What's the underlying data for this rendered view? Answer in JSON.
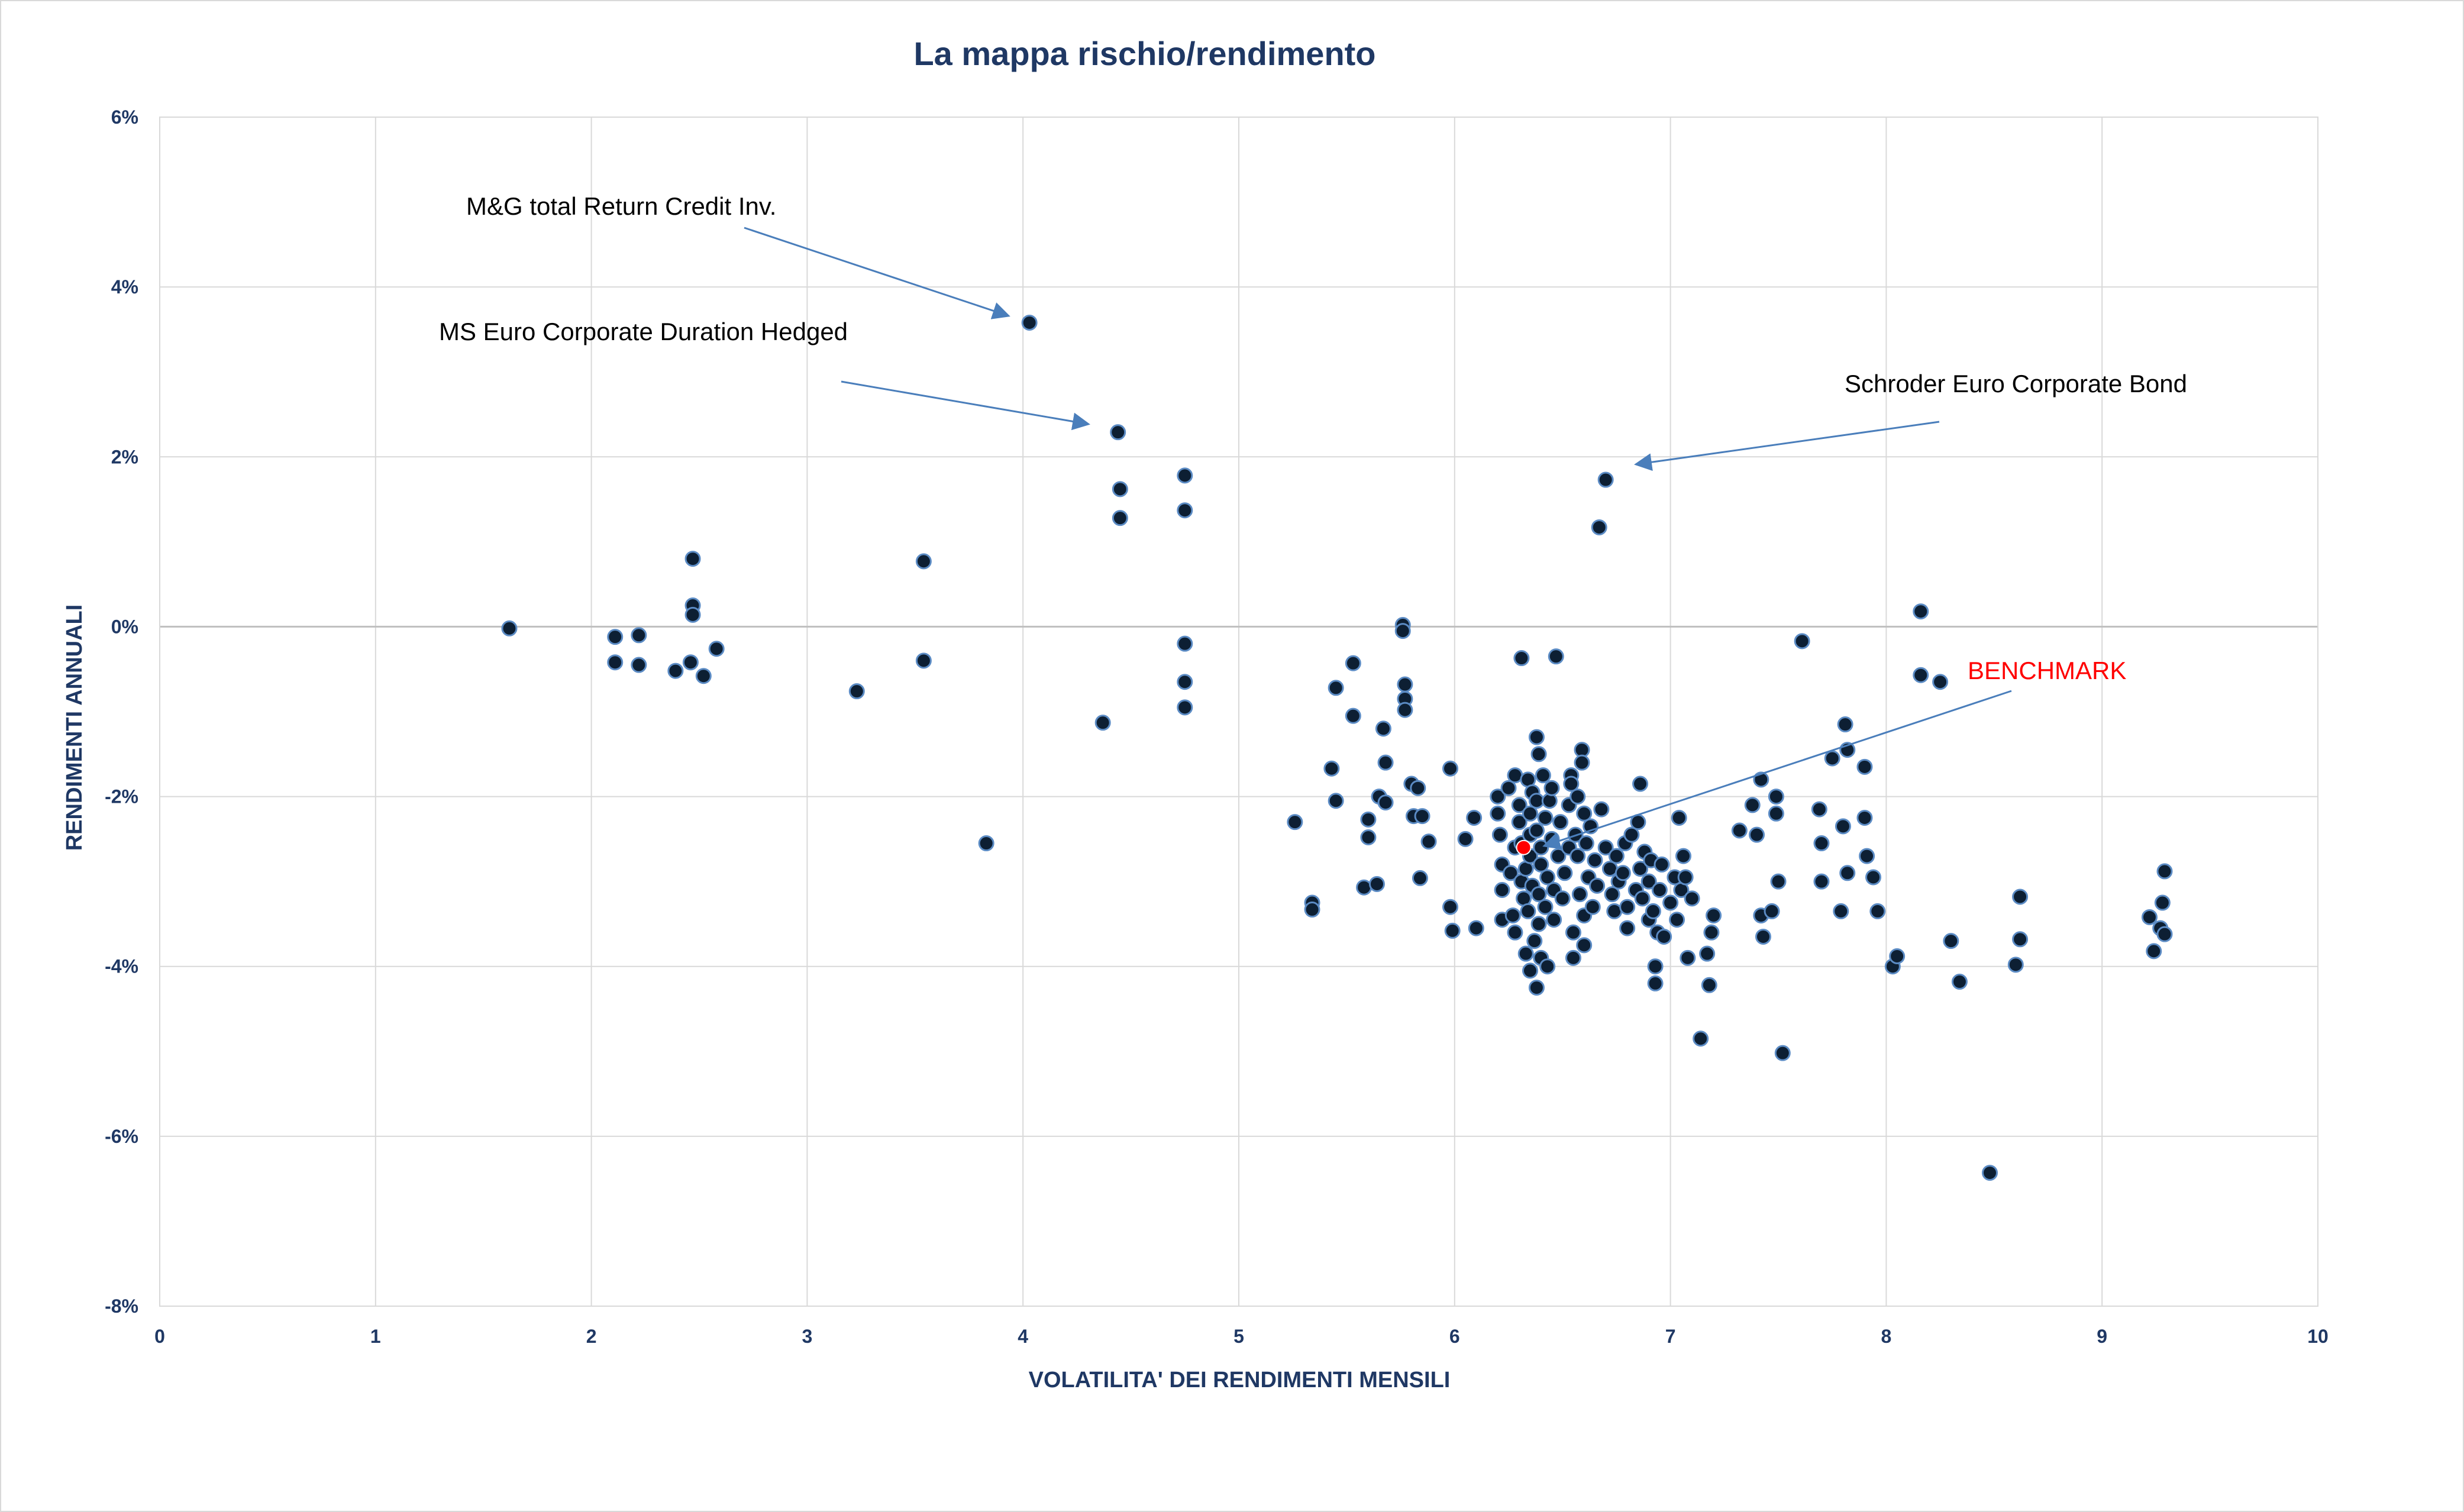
{
  "chart_data": {
    "type": "scatter",
    "title": "La mappa rischio/rendimento",
    "xlabel": "VOLATILITA' DEI RENDIMENTI MENSILI",
    "ylabel": "RENDIMENTI ANNUALI",
    "xlim": [
      0,
      10
    ],
    "ylim": [
      -8,
      6
    ],
    "x_ticks": [
      "0",
      "1",
      "2",
      "3",
      "4",
      "5",
      "6",
      "7",
      "8",
      "9",
      "10"
    ],
    "y_ticks": [
      "-8%",
      "-6%",
      "-4%",
      "-2%",
      "0%",
      "2%",
      "4%",
      "6%"
    ],
    "grid": true,
    "legend": "none",
    "colors": {
      "point": "#0d1f33",
      "point_edge": "#5b8bc4",
      "benchmark": "#ff0000",
      "grid": "#d9d9d9",
      "zero_line": "#bfbfbf",
      "axis_text": "#1f3864",
      "arrow": "#4a7ebb"
    },
    "annotations": [
      {
        "text": "M&G total Return Credit Inv.",
        "color": "#000000",
        "target": [
          4.0,
          3.6
        ]
      },
      {
        "text": "MS Euro Corporate Duration Hedged",
        "color": "#000000",
        "target": [
          4.4,
          2.3
        ]
      },
      {
        "text": "Schroder Euro Corporate Bond",
        "color": "#000000",
        "target": [
          6.8,
          1.9
        ]
      },
      {
        "text": "BENCHMARK",
        "color": "#ff0000",
        "target": [
          6.4,
          -2.6
        ]
      }
    ],
    "benchmark": {
      "x": 6.32,
      "y": -2.6
    },
    "series": [
      {
        "points": [
          [
            1.62,
            -0.02
          ],
          [
            2.11,
            -0.12
          ],
          [
            2.11,
            -0.42
          ],
          [
            2.22,
            -0.1
          ],
          [
            2.22,
            -0.45
          ],
          [
            2.39,
            -0.52
          ],
          [
            2.47,
            0.8
          ],
          [
            2.47,
            0.25
          ],
          [
            2.47,
            0.14
          ],
          [
            2.46,
            -0.42
          ],
          [
            2.52,
            -0.58
          ],
          [
            2.58,
            -0.26
          ],
          [
            3.23,
            -0.76
          ],
          [
            3.54,
            0.77
          ],
          [
            3.54,
            -0.4
          ],
          [
            3.83,
            -2.55
          ],
          [
            4.03,
            3.58
          ],
          [
            4.37,
            -1.13
          ],
          [
            4.44,
            2.29
          ],
          [
            4.45,
            1.62
          ],
          [
            4.45,
            1.28
          ],
          [
            4.75,
            1.78
          ],
          [
            4.75,
            1.37
          ],
          [
            4.75,
            -0.2
          ],
          [
            4.75,
            -0.65
          ],
          [
            4.75,
            -0.95
          ],
          [
            5.26,
            -2.3
          ],
          [
            5.34,
            -3.25
          ],
          [
            5.34,
            -3.33
          ],
          [
            5.43,
            -1.67
          ],
          [
            5.45,
            -0.72
          ],
          [
            5.45,
            -2.05
          ],
          [
            5.53,
            -0.43
          ],
          [
            5.53,
            -1.05
          ],
          [
            5.58,
            -3.07
          ],
          [
            5.6,
            -2.27
          ],
          [
            5.6,
            -2.48
          ],
          [
            5.64,
            -3.03
          ],
          [
            5.65,
            -2.0
          ],
          [
            5.67,
            -1.2
          ],
          [
            5.68,
            -1.6
          ],
          [
            5.68,
            -2.07
          ],
          [
            5.76,
            0.02
          ],
          [
            5.76,
            -0.05
          ],
          [
            5.77,
            -0.68
          ],
          [
            5.77,
            -0.85
          ],
          [
            5.77,
            -0.98
          ],
          [
            5.8,
            -1.85
          ],
          [
            5.81,
            -2.23
          ],
          [
            5.83,
            -1.9
          ],
          [
            5.84,
            -2.96
          ],
          [
            5.85,
            -2.23
          ],
          [
            5.88,
            -2.53
          ],
          [
            5.98,
            -1.67
          ],
          [
            5.98,
            -3.3
          ],
          [
            5.99,
            -3.58
          ],
          [
            6.05,
            -2.5
          ],
          [
            6.09,
            -2.25
          ],
          [
            6.1,
            -3.55
          ],
          [
            6.2,
            -2.0
          ],
          [
            6.2,
            -2.2
          ],
          [
            6.21,
            -2.45
          ],
          [
            6.22,
            -2.8
          ],
          [
            6.22,
            -3.1
          ],
          [
            6.22,
            -3.45
          ],
          [
            6.25,
            -1.9
          ],
          [
            6.26,
            -2.9
          ],
          [
            6.27,
            -3.4
          ],
          [
            6.28,
            -1.75
          ],
          [
            6.28,
            -2.6
          ],
          [
            6.28,
            -3.6
          ],
          [
            6.3,
            -2.1
          ],
          [
            6.3,
            -2.3
          ],
          [
            6.31,
            -2.55
          ],
          [
            6.31,
            -3.0
          ],
          [
            6.31,
            -0.37
          ],
          [
            6.32,
            -3.2
          ],
          [
            6.33,
            -3.85
          ],
          [
            6.33,
            -2.85
          ],
          [
            6.34,
            -1.8
          ],
          [
            6.34,
            -3.35
          ],
          [
            6.35,
            -2.2
          ],
          [
            6.35,
            -2.45
          ],
          [
            6.35,
            -2.7
          ],
          [
            6.35,
            -4.05
          ],
          [
            6.36,
            -1.95
          ],
          [
            6.36,
            -3.05
          ],
          [
            6.37,
            -3.7
          ],
          [
            6.38,
            -2.05
          ],
          [
            6.38,
            -2.4
          ],
          [
            6.38,
            -1.3
          ],
          [
            6.38,
            -4.25
          ],
          [
            6.39,
            -3.15
          ],
          [
            6.39,
            -3.5
          ],
          [
            6.39,
            -1.5
          ],
          [
            6.4,
            -2.6
          ],
          [
            6.4,
            -2.8
          ],
          [
            6.4,
            -3.9
          ],
          [
            6.41,
            -1.75
          ],
          [
            6.42,
            -2.25
          ],
          [
            6.42,
            -3.3
          ],
          [
            6.43,
            -2.95
          ],
          [
            6.43,
            -4.0
          ],
          [
            6.44,
            -2.05
          ],
          [
            6.45,
            -1.9
          ],
          [
            6.45,
            -2.5
          ],
          [
            6.46,
            -3.1
          ],
          [
            6.46,
            -3.45
          ],
          [
            6.47,
            -0.35
          ],
          [
            6.48,
            -2.7
          ],
          [
            6.49,
            -2.3
          ],
          [
            6.5,
            -3.2
          ],
          [
            6.51,
            -2.9
          ],
          [
            6.53,
            -2.6
          ],
          [
            6.53,
            -2.1
          ],
          [
            6.54,
            -1.75
          ],
          [
            6.54,
            -1.85
          ],
          [
            6.55,
            -3.6
          ],
          [
            6.55,
            -3.9
          ],
          [
            6.56,
            -2.45
          ],
          [
            6.57,
            -2.0
          ],
          [
            6.57,
            -2.7
          ],
          [
            6.58,
            -3.15
          ],
          [
            6.59,
            -1.45
          ],
          [
            6.59,
            -1.6
          ],
          [
            6.6,
            -2.2
          ],
          [
            6.6,
            -3.4
          ],
          [
            6.6,
            -3.75
          ],
          [
            6.61,
            -2.55
          ],
          [
            6.62,
            -2.95
          ],
          [
            6.63,
            -2.35
          ],
          [
            6.64,
            -3.3
          ],
          [
            6.65,
            -2.75
          ],
          [
            6.66,
            -3.05
          ],
          [
            6.67,
            1.17
          ],
          [
            6.68,
            -2.15
          ],
          [
            6.7,
            1.73
          ],
          [
            6.7,
            -2.6
          ],
          [
            6.72,
            -2.85
          ],
          [
            6.73,
            -3.15
          ],
          [
            6.74,
            -3.35
          ],
          [
            6.75,
            -2.7
          ],
          [
            6.76,
            -3.0
          ],
          [
            6.78,
            -2.9
          ],
          [
            6.79,
            -2.55
          ],
          [
            6.8,
            -3.3
          ],
          [
            6.8,
            -3.55
          ],
          [
            6.82,
            -2.45
          ],
          [
            6.84,
            -3.1
          ],
          [
            6.85,
            -2.3
          ],
          [
            6.86,
            -1.85
          ],
          [
            6.86,
            -2.85
          ],
          [
            6.87,
            -3.2
          ],
          [
            6.88,
            -2.65
          ],
          [
            6.9,
            -3.0
          ],
          [
            6.9,
            -3.45
          ],
          [
            6.91,
            -2.75
          ],
          [
            6.92,
            -3.35
          ],
          [
            6.93,
            -4.0
          ],
          [
            6.93,
            -4.2
          ],
          [
            6.94,
            -3.6
          ],
          [
            6.95,
            -3.1
          ],
          [
            6.96,
            -2.8
          ],
          [
            6.97,
            -3.65
          ],
          [
            7.0,
            -3.25
          ],
          [
            7.02,
            -2.95
          ],
          [
            7.03,
            -3.45
          ],
          [
            7.04,
            -2.25
          ],
          [
            7.05,
            -3.1
          ],
          [
            7.06,
            -2.7
          ],
          [
            7.07,
            -2.95
          ],
          [
            7.08,
            -3.9
          ],
          [
            7.1,
            -3.2
          ],
          [
            7.14,
            -4.85
          ],
          [
            7.17,
            -3.85
          ],
          [
            7.18,
            -4.22
          ],
          [
            7.19,
            -3.6
          ],
          [
            7.2,
            -3.4
          ],
          [
            7.32,
            -2.4
          ],
          [
            7.38,
            -2.1
          ],
          [
            7.4,
            -2.45
          ],
          [
            7.42,
            -1.8
          ],
          [
            7.42,
            -3.4
          ],
          [
            7.43,
            -3.65
          ],
          [
            7.47,
            -3.35
          ],
          [
            7.49,
            -2.0
          ],
          [
            7.49,
            -2.2
          ],
          [
            7.5,
            -3.0
          ],
          [
            7.52,
            -5.02
          ],
          [
            7.61,
            -0.17
          ],
          [
            7.69,
            -2.15
          ],
          [
            7.7,
            -2.55
          ],
          [
            7.7,
            -3.0
          ],
          [
            7.75,
            -1.55
          ],
          [
            7.79,
            -3.35
          ],
          [
            7.8,
            -2.35
          ],
          [
            7.81,
            -1.15
          ],
          [
            7.82,
            -1.45
          ],
          [
            7.82,
            -2.9
          ],
          [
            7.9,
            -1.65
          ],
          [
            7.9,
            -2.25
          ],
          [
            7.91,
            -2.7
          ],
          [
            7.94,
            -2.95
          ],
          [
            7.96,
            -3.35
          ],
          [
            8.03,
            -4.0
          ],
          [
            8.05,
            -3.88
          ],
          [
            8.16,
            0.18
          ],
          [
            8.16,
            -0.57
          ],
          [
            8.25,
            -0.65
          ],
          [
            8.3,
            -3.7
          ],
          [
            8.34,
            -4.18
          ],
          [
            8.48,
            -6.43
          ],
          [
            8.6,
            -3.98
          ],
          [
            8.62,
            -3.18
          ],
          [
            8.62,
            -3.68
          ],
          [
            9.22,
            -3.42
          ],
          [
            9.24,
            -3.82
          ],
          [
            9.27,
            -3.55
          ],
          [
            9.28,
            -3.25
          ],
          [
            9.29,
            -2.88
          ],
          [
            9.29,
            -3.62
          ]
        ]
      }
    ]
  }
}
